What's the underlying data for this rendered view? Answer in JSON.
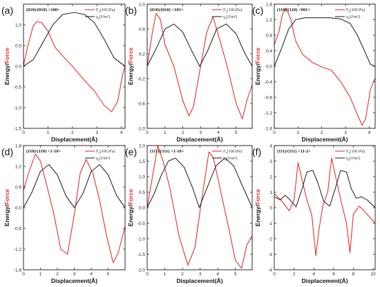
{
  "chart_data": [
    {
      "panel_label": "(a)",
      "title": "(010)/(010)  <100>",
      "type": "line",
      "xlabel": "Displacement(Å)",
      "ylabel_energy": "Energy",
      "ylabel_sep": "/",
      "ylabel_force": "Force",
      "xlim": [
        0,
        4.15
      ],
      "ylim": [
        -1.5,
        1.5
      ],
      "xticks": [
        0,
        1,
        2,
        3,
        4
      ],
      "yticks": [
        -1.5,
        -1.0,
        -0.5,
        0.0,
        0.5,
        1.0
      ],
      "ytick_labels": [
        "-1.5",
        "-1.0",
        "-0.5",
        "0.0",
        "0.5",
        "1.0"
      ],
      "legend_position": "top-right",
      "series": [
        {
          "name": "F",
          "name_sub": "s",
          "name_rest": "(10GPa)",
          "color": "#e8302c",
          "x": [
            0,
            0.2,
            0.4,
            0.55,
            0.75,
            1.0,
            1.3,
            1.6,
            2.0,
            2.5,
            2.9,
            3.3,
            3.6,
            3.85,
            4.05,
            4.15
          ],
          "y": [
            0.02,
            0.55,
            0.98,
            1.08,
            1.05,
            0.85,
            0.45,
            0.25,
            0.0,
            -0.35,
            -0.6,
            -0.95,
            -1.1,
            -0.85,
            -0.2,
            0.0
          ]
        },
        {
          "name": "γ",
          "name_sub": "s",
          "name_rest": "(J/m²)",
          "color": "#2a2a2a",
          "x": [
            0,
            0.4,
            0.8,
            1.2,
            1.6,
            2.075,
            2.5,
            2.9,
            3.3,
            3.7,
            4.15
          ],
          "y": [
            0.0,
            0.16,
            0.58,
            1.0,
            1.25,
            1.3,
            1.25,
            1.05,
            0.65,
            0.2,
            0.0
          ]
        }
      ]
    },
    {
      "panel_label": "(b)",
      "title": "(010)/(010)  <101>",
      "type": "line",
      "xlabel": "Displacement(Å)",
      "ylabel_energy": "Energy",
      "ylabel_sep": "/",
      "ylabel_force": "Force",
      "xlim": [
        0,
        5.9
      ],
      "ylim": [
        -1.0,
        1.0
      ],
      "xticks": [
        0,
        1,
        2,
        3,
        4,
        5
      ],
      "yticks": [
        -1.0,
        -0.6,
        -0.2,
        0.2,
        0.6,
        1.0
      ],
      "ytick_labels": [
        "-1.0",
        "-0.6",
        "-0.2",
        "0.2",
        "0.6",
        "1.0"
      ],
      "legend_position": "top-right",
      "series": [
        {
          "name": "F",
          "name_sub": "s",
          "name_rest": "(10GPa)",
          "color": "#e8302c",
          "x": [
            0,
            0.3,
            0.5,
            0.75,
            1.0,
            1.5,
            2.0,
            2.35,
            2.6,
            3.0,
            3.35,
            3.7,
            4.0,
            4.5,
            5.0,
            5.35,
            5.6,
            5.9
          ],
          "y": [
            0.0,
            0.55,
            0.85,
            0.75,
            0.35,
            0.0,
            -0.55,
            -0.8,
            -0.65,
            0.0,
            0.55,
            0.8,
            0.5,
            0.0,
            -0.6,
            -0.85,
            -0.55,
            -0.3
          ]
        },
        {
          "name": "γ",
          "name_sub": "s",
          "name_rest": "(J/m²)",
          "color": "#2a2a2a",
          "x": [
            0,
            0.5,
            1.0,
            1.5,
            2.0,
            2.5,
            2.95,
            3.4,
            3.9,
            4.45,
            5.0,
            5.5,
            5.9
          ],
          "y": [
            0.0,
            0.28,
            0.6,
            0.68,
            0.55,
            0.25,
            0.0,
            0.25,
            0.6,
            0.68,
            0.52,
            0.2,
            0.0
          ]
        }
      ]
    },
    {
      "panel_label": "(c)",
      "title": "(110)/(110)  <001>",
      "type": "line",
      "xlabel": "Displacement(Å)",
      "ylabel_energy": "Energy",
      "ylabel_sep": "/",
      "ylabel_force": "Force",
      "xlim": [
        0,
        4.25
      ],
      "ylim": [
        -1.6,
        1.6
      ],
      "xticks": [
        0,
        1,
        2,
        3,
        4
      ],
      "yticks": [
        -1.6,
        -1.2,
        -0.8,
        -0.4,
        0.0,
        0.4,
        0.8,
        1.2,
        1.6
      ],
      "ytick_labels": [
        "-1.6",
        "-1.2",
        "-0.8",
        "-0.4",
        "0.0",
        "0.4",
        "0.8",
        "1.2",
        "1.6"
      ],
      "legend_position": "top-right",
      "series": [
        {
          "name": "F",
          "name_sub": "s",
          "name_rest": "(10GPa)",
          "color": "#e8302c",
          "x": [
            0,
            0.2,
            0.35,
            0.5,
            0.7,
            0.9,
            1.2,
            1.6,
            2.0,
            2.4,
            2.8,
            3.2,
            3.5,
            3.7,
            3.85,
            4.05,
            4.25
          ],
          "y": [
            0.55,
            0.9,
            1.35,
            1.5,
            1.2,
            0.65,
            0.3,
            0.1,
            -0.02,
            -0.1,
            -0.4,
            -0.8,
            -1.25,
            -1.52,
            -1.35,
            -0.6,
            -0.3
          ]
        },
        {
          "name": "γ",
          "name_sub": "s",
          "name_rest": "(J/m²)",
          "color": "#2a2a2a",
          "x": [
            0,
            0.3,
            0.6,
            0.9,
            1.3,
            1.8,
            2.3,
            2.8,
            3.2,
            3.5,
            3.8,
            4.05,
            4.25
          ],
          "y": [
            0.0,
            0.45,
            0.95,
            1.2,
            1.25,
            1.25,
            1.25,
            1.22,
            1.1,
            0.8,
            0.4,
            0.05,
            0.0
          ]
        }
      ]
    },
    {
      "panel_label": "(d)",
      "title": "(110)/(110)  <1-10>",
      "type": "line",
      "xlabel": "Displacement(Å)",
      "ylabel_energy": "Energy",
      "ylabel_sep": "/",
      "ylabel_force": "Force",
      "xlim": [
        0,
        6.0
      ],
      "ylim": [
        -1.8,
        1.8
      ],
      "xticks": [
        0,
        1,
        2,
        3,
        4,
        5
      ],
      "yticks": [
        -1.8,
        -1.2,
        -0.6,
        0.0,
        0.6,
        1.2,
        1.8
      ],
      "ytick_labels": [
        "-1.8",
        "-1.2",
        "-0.6",
        "0.0",
        "0.6",
        "1.2",
        "1.8"
      ],
      "legend_position": "top-right",
      "series": [
        {
          "name": "F",
          "name_sub": "s",
          "name_rest": "(10GPa)",
          "color": "#e8302c",
          "x": [
            0,
            0.3,
            0.7,
            1.0,
            1.4,
            1.8,
            2.2,
            2.6,
            3.0,
            3.35,
            3.7,
            4.1,
            4.5,
            4.9,
            5.3,
            5.6,
            6.0
          ],
          "y": [
            0.5,
            1.0,
            1.55,
            1.35,
            0.6,
            -0.2,
            -1.2,
            -1.35,
            -0.2,
            1.0,
            1.4,
            1.0,
            0.2,
            -0.8,
            -1.6,
            -1.3,
            -0.55
          ]
        },
        {
          "name": "γ",
          "name_sub": "s",
          "name_rest": "(J/m²)",
          "color": "#2a2a2a",
          "x": [
            0,
            0.5,
            1.0,
            1.5,
            2.0,
            2.5,
            3.0,
            3.5,
            4.0,
            4.5,
            5.0,
            5.5,
            6.0
          ],
          "y": [
            0.0,
            0.45,
            1.05,
            1.25,
            0.95,
            0.35,
            0.0,
            0.4,
            1.05,
            1.25,
            0.95,
            0.35,
            0.0
          ]
        }
      ]
    },
    {
      "panel_label": "(e)",
      "title": "(111)/(111)  <1-10>",
      "type": "line",
      "xlabel": "Displacement(Å)",
      "ylabel_energy": "Energy",
      "ylabel_sep": "/",
      "ylabel_force": "Force",
      "xlim": [
        0,
        5.95
      ],
      "ylim": [
        -2.0,
        2.0
      ],
      "xticks": [
        0,
        1,
        2,
        3,
        4,
        5
      ],
      "yticks": [
        -2.0,
        -1.5,
        -1.0,
        -0.5,
        0.0,
        0.5,
        1.0,
        1.5,
        2.0
      ],
      "ytick_labels": [
        "-2.0",
        "-1.5",
        "-1.0",
        "-0.5",
        "0.0",
        "0.5",
        "1.0",
        "1.5",
        "2.0"
      ],
      "legend_position": "top-right",
      "series": [
        {
          "name": "F",
          "name_sub": "s",
          "name_rest": "(10GPa)",
          "color": "#e8302c",
          "x": [
            0,
            0.3,
            0.6,
            0.9,
            1.3,
            1.8,
            2.3,
            2.7,
            3.1,
            3.5,
            3.75,
            4.1,
            4.6,
            5.0,
            5.35,
            5.65,
            5.95
          ],
          "y": [
            0.0,
            1.0,
            2.0,
            1.5,
            0.6,
            -0.9,
            -1.85,
            -1.3,
            0.3,
            1.8,
            1.6,
            0.7,
            -0.6,
            -1.7,
            -1.95,
            -1.2,
            -0.9
          ]
        },
        {
          "name": "γ",
          "name_sub": "s",
          "name_rest": "(J/m²)",
          "color": "#2a2a2a",
          "x": [
            0,
            0.4,
            0.8,
            1.2,
            1.6,
            2.1,
            2.6,
            2.95,
            3.4,
            3.9,
            4.4,
            4.9,
            5.4,
            5.95
          ],
          "y": [
            0.0,
            0.45,
            1.05,
            1.5,
            1.6,
            1.3,
            0.6,
            0.0,
            0.65,
            1.35,
            1.6,
            1.35,
            0.7,
            0.0
          ]
        }
      ]
    },
    {
      "panel_label": "(f)",
      "title": "(111)/(111)  <11-2>",
      "type": "line",
      "xlabel": "Displacement(Å)",
      "ylabel_energy": "Energy",
      "ylabel_sep": "/",
      "ylabel_force": "Force",
      "xlim": [
        0,
        10.2
      ],
      "ylim": [
        -4,
        4
      ],
      "xticks": [
        0,
        2,
        4,
        6,
        8,
        10
      ],
      "yticks": [
        -4,
        -3,
        -2,
        -1,
        0,
        1,
        2,
        3,
        4
      ],
      "ytick_labels": [
        "-4",
        "-3",
        "-2",
        "-1",
        "0",
        "1",
        "2",
        "3",
        "4"
      ],
      "legend_position": "top-right",
      "series": [
        {
          "name": "F",
          "name_sub": "s",
          "name_rest": "(10GPa)",
          "color": "#e8302c",
          "x": [
            0,
            0.8,
            1.5,
            2.0,
            2.4,
            2.8,
            3.3,
            3.8,
            4.2,
            4.5,
            4.9,
            5.4,
            5.8,
            6.2,
            6.8,
            7.3,
            7.65,
            8.0,
            8.6,
            9.2,
            10.2
          ],
          "y": [
            0.9,
            0.4,
            -0.2,
            0.5,
            2.9,
            1.8,
            0.5,
            -0.5,
            -3.1,
            -1.5,
            0.1,
            1.0,
            3.2,
            2.0,
            0.3,
            -1.0,
            -2.9,
            -0.4,
            0.1,
            -0.3,
            -1.0
          ]
        },
        {
          "name": "γ",
          "name_sub": "s",
          "name_rest": "(J/m²)",
          "color": "#2a2a2a",
          "x": [
            0,
            0.6,
            1.1,
            1.6,
            2.2,
            2.8,
            3.3,
            3.9,
            4.4,
            5.0,
            5.6,
            6.2,
            6.7,
            7.3,
            7.8,
            8.3,
            8.8,
            9.4,
            10.2
          ],
          "y": [
            0.7,
            0.5,
            0.8,
            0.5,
            0.05,
            1.2,
            2.3,
            2.4,
            1.6,
            0.4,
            0.1,
            1.3,
            2.4,
            2.3,
            1.2,
            0.6,
            0.7,
            0.5,
            0.0
          ]
        }
      ]
    }
  ]
}
